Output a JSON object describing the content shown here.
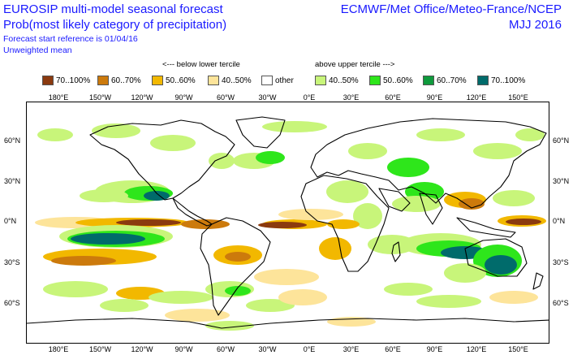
{
  "header": {
    "title_line1": "EUROSIP multi-model seasonal forecast",
    "title_line2": "Prob(most likely category of precipitation)",
    "start_reference": "Forecast start reference is 01/04/16",
    "weighting": "Unweighted mean",
    "centres": "ECMWF/Met Office/Meteo-France/NCEP",
    "season": "MJJ 2016"
  },
  "legend": {
    "below_heading": "<--- below lower tercile",
    "above_heading": "above upper tercile --->",
    "items": [
      {
        "label": "70..100%",
        "color": "#8b3a0f"
      },
      {
        "label": "60..70%",
        "color": "#cc7a0c"
      },
      {
        "label": "50..60%",
        "color": "#f2b800"
      },
      {
        "label": "40..50%",
        "color": "#fde49a"
      },
      {
        "label": "other",
        "color": "#ffffff"
      },
      {
        "label": "40..50%",
        "color": "#c8f57a"
      },
      {
        "label": "50..60%",
        "color": "#2ee61b"
      },
      {
        "label": "60..70%",
        "color": "#0f9a3c"
      },
      {
        "label": "70..100%",
        "color": "#006b6b"
      }
    ]
  },
  "map": {
    "lon_ticks": [
      "180°E",
      "150°W",
      "120°W",
      "90°W",
      "60°W",
      "30°W",
      "0°E",
      "30°E",
      "60°E",
      "90°E",
      "120°E",
      "150°E"
    ],
    "lat_ticks": [
      "60°N",
      "30°N",
      "0°N",
      "30°S",
      "60°S"
    ]
  }
}
